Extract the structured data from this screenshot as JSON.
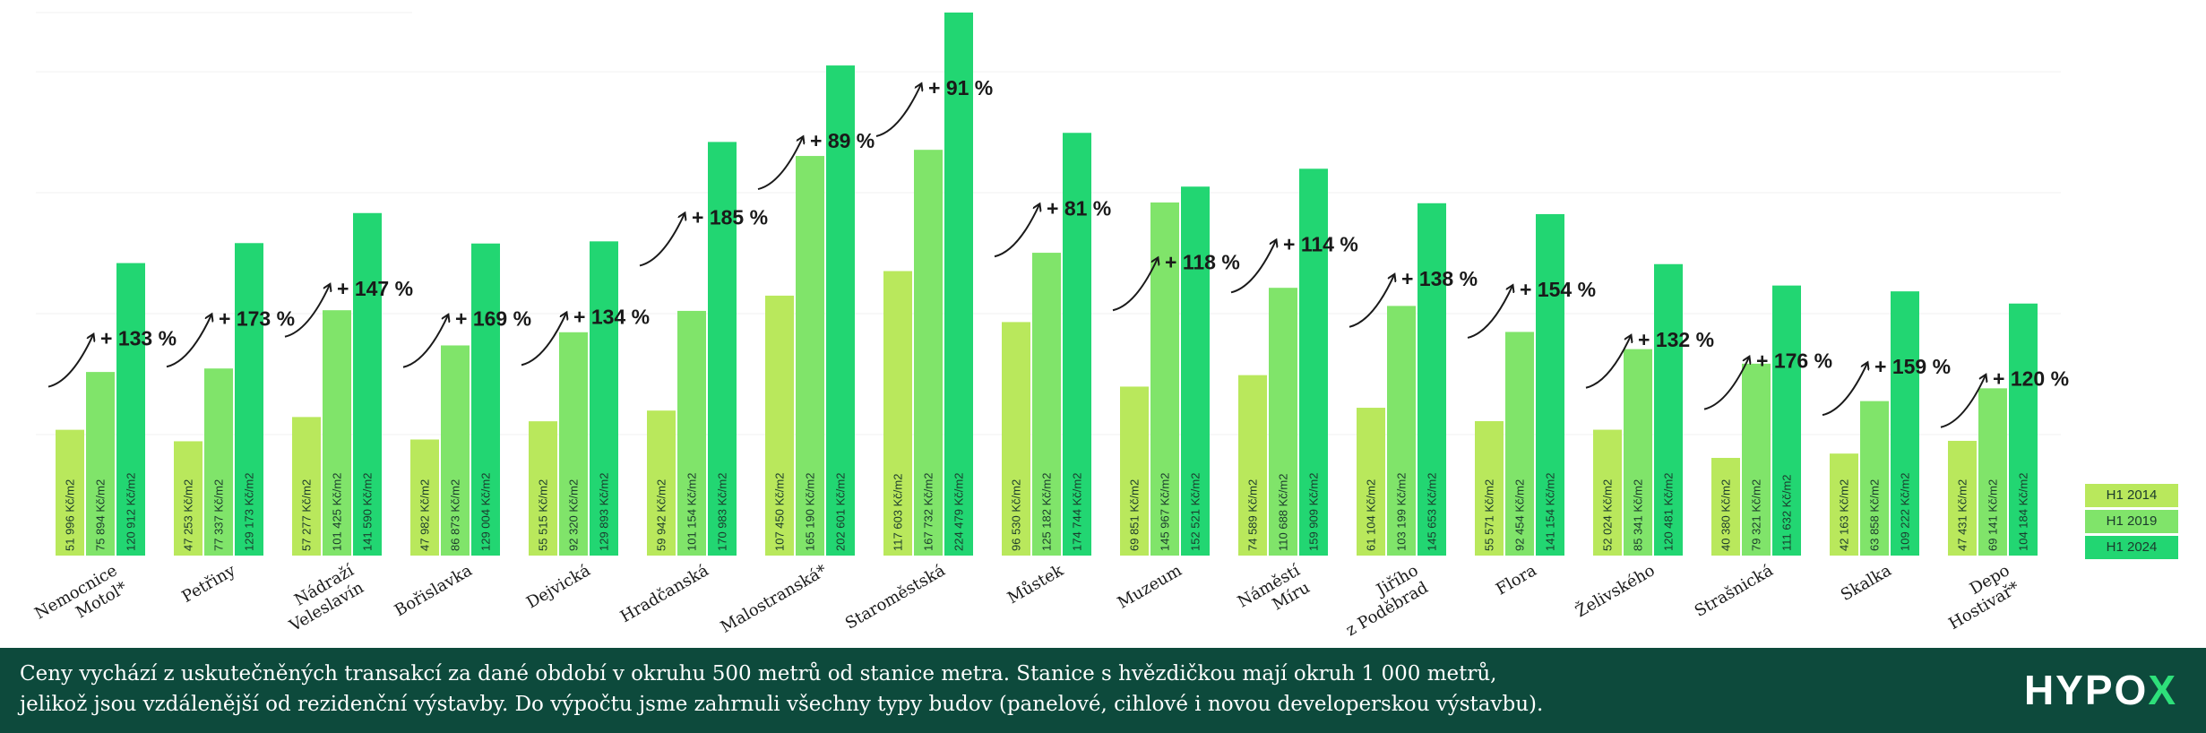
{
  "chart_data": {
    "type": "bar",
    "categories": [
      "Nemocnice\nMotol*",
      "Petřiny",
      "Nádraží\nVeleslavín",
      "Bořislavka",
      "Dejvická",
      "Hradčanská",
      "Malostranská*",
      "Staroměstská",
      "Můstek",
      "Muzeum",
      "Náměstí\nMíru",
      "Jiřího\nz Poděbrad",
      "Flora",
      "Želivského",
      "Strašnická",
      "Skalka",
      "Depo\nHostivař*"
    ],
    "series": [
      {
        "name": "H1 2014",
        "color": "#b9e85c",
        "values": [
          51996,
          47253,
          57277,
          47982,
          55515,
          59942,
          107450,
          117603,
          96530,
          69851,
          74589,
          61104,
          55571,
          52024,
          40380,
          42163,
          47431
        ]
      },
      {
        "name": "H1 2019",
        "color": "#80e46a",
        "values": [
          75894,
          77337,
          101425,
          86873,
          92320,
          101154,
          165190,
          167732,
          125182,
          145967,
          110688,
          103199,
          92454,
          85341,
          79321,
          63858,
          69141
        ]
      },
      {
        "name": "H1 2024",
        "color": "#22d672",
        "values": [
          120912,
          129173,
          141590,
          129004,
          129893,
          170983,
          202601,
          224479,
          174744,
          152521,
          159909,
          145653,
          141154,
          120481,
          111632,
          109222,
          104184
        ]
      }
    ],
    "value_labels": [
      [
        "51 996 Kč/m2",
        "75 894 Kč/m2",
        "120 912 Kč/m2"
      ],
      [
        "47 253 Kč/m2",
        "77 337 Kč/m2",
        "129 173 Kč/m2"
      ],
      [
        "57 277 Kč/m2",
        "101 425 Kč/m2",
        "141 590 Kč/m2"
      ],
      [
        "47 982 Kč/m2",
        "86 873 Kč/m2",
        "129 004 Kč/m2"
      ],
      [
        "55 515 Kč/m2",
        "92 320 Kč/m2",
        "129 893 Kč/m2"
      ],
      [
        "59 942 Kč/m2",
        "101 154 Kč/m2",
        "170 983 Kč/m2"
      ],
      [
        "107 450 Kč/m2",
        "165 190 Kč/m2",
        "202 601 Kč/m2"
      ],
      [
        "117 603 Kč/m2",
        "167 732 Kč/m2",
        "224 479 Kč/m2"
      ],
      [
        "96 530 Kč/m2",
        "125 182 Kč/m2",
        "174 744 Kč/m2"
      ],
      [
        "69 851 Kč/m2",
        "145 967 Kč/m2",
        "152 521 Kč/m2"
      ],
      [
        "74 589 Kč/m2",
        "110 688 Kč/m2",
        "159 909 Kč/m2"
      ],
      [
        "61 104 Kč/m2",
        "103 199 Kč/m2",
        "145 653 Kč/m2"
      ],
      [
        "55 571 Kč/m2",
        "92 454 Kč/m2",
        "141 154 Kč/m2"
      ],
      [
        "52 024 Kč/m2",
        "85 341 Kč/m2",
        "120 481 Kč/m2"
      ],
      [
        "40 380 Kč/m2",
        "79 321 Kč/m2",
        "111 632 Kč/m2"
      ],
      [
        "42 163 Kč/m2",
        "63 858 Kč/m2",
        "109 222 Kč/m2"
      ],
      [
        "47 431 Kč/m2",
        "69 141 Kč/m2",
        "104 184 Kč/m2"
      ]
    ],
    "growth_labels": [
      "+ 133 %",
      "+ 173 %",
      "+ 147 %",
      "+ 169 %",
      "+ 134 %",
      "+ 185 %",
      "+ 89 %",
      "+ 91 %",
      "+ 81 %",
      "+ 118 %",
      "+ 114 %",
      "+ 138 %",
      "+ 154 %",
      "+ 132 %",
      "+ 176 %",
      "+ 159 %",
      "+ 120 %"
    ],
    "title": "",
    "xlabel": "",
    "ylabel": "",
    "ylim": [
      0,
      230000
    ],
    "grid": true,
    "legend_position": "bottom-right"
  },
  "legend": [
    {
      "label": "H1 2014",
      "color": "#b9e85c"
    },
    {
      "label": "H1 2019",
      "color": "#80e46a"
    },
    {
      "label": "H1 2024",
      "color": "#22d672"
    }
  ],
  "footer": {
    "note": "Ceny vychází z uskutečněných transakcí za dané období v okruhu 500 metrů od stanice metra. Stanice s hvězdičkou mají okruh 1 000 metrů,\njelikož jsou vzdálenější od rezidenční výstavby. Do výpočtu jsme zahrnuli všechny typy budov (panelové, cihlové i novou developerskou výstavbu).",
    "logo_main": "HYPO",
    "logo_accent": "X"
  }
}
